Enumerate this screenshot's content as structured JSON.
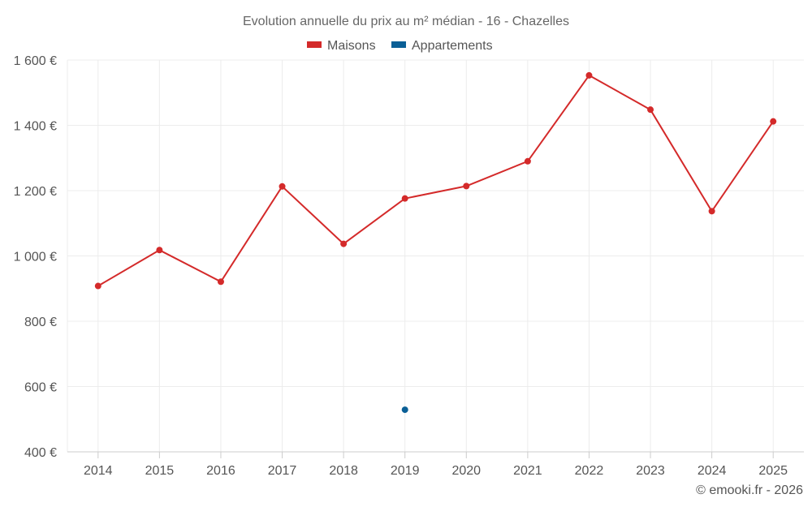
{
  "chart_data": {
    "type": "line",
    "title": "Evolution annuelle du prix au m² médian - 16 - Chazelles",
    "categories": [
      "2014",
      "2015",
      "2016",
      "2017",
      "2018",
      "2019",
      "2020",
      "2021",
      "2022",
      "2023",
      "2024",
      "2025"
    ],
    "series": [
      {
        "name": "Maisons",
        "color": "#d42a2a",
        "values": [
          908,
          1018,
          921,
          1213,
          1037,
          1176,
          1214,
          1290,
          1553,
          1448,
          1137,
          1412
        ]
      },
      {
        "name": "Appartements",
        "color": "#0a5f96",
        "values": [
          null,
          null,
          null,
          null,
          null,
          529,
          null,
          null,
          null,
          null,
          null,
          null
        ]
      }
    ],
    "y_ticks": [
      400,
      600,
      800,
      1000,
      1200,
      1400,
      1600
    ],
    "y_tick_labels": [
      "400 €",
      "600 €",
      "800 €",
      "1 000 €",
      "1 200 €",
      "1 400 €",
      "1 600 €"
    ],
    "ylim": [
      400,
      1600
    ],
    "xlabel": "",
    "ylabel": "",
    "grid": true,
    "legend_position": "top-center"
  },
  "credit": "© emooki.fr - 2026"
}
